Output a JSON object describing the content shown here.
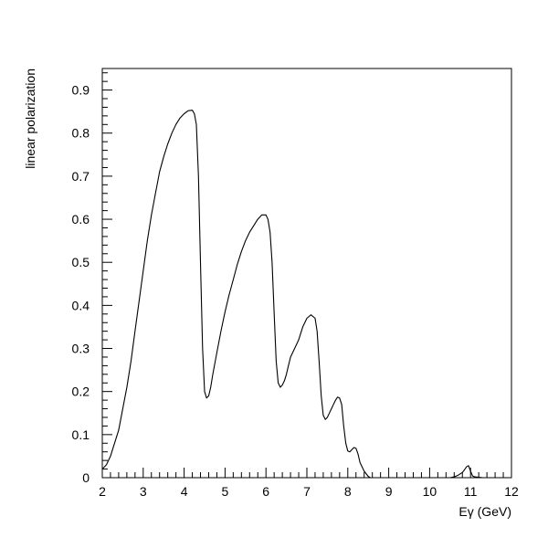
{
  "chart_data": {
    "type": "line",
    "title": "",
    "xlabel": "Eγ (GeV)",
    "ylabel": "linear polarization",
    "xlim": [
      2,
      12
    ],
    "ylim": [
      0,
      0.95
    ],
    "grid": false,
    "x_ticks": [
      2,
      3,
      4,
      5,
      6,
      7,
      8,
      9,
      10,
      11,
      12
    ],
    "y_ticks": [
      0,
      0.1,
      0.2,
      0.3,
      0.4,
      0.5,
      0.6,
      0.7,
      0.8,
      0.9
    ],
    "x_tick_labels": [
      "2",
      "3",
      "4",
      "5",
      "6",
      "7",
      "8",
      "9",
      "10",
      "11",
      "12"
    ],
    "y_tick_labels": [
      "0",
      "0.1",
      "0.2",
      "0.3",
      "0.4",
      "0.5",
      "0.6",
      "0.7",
      "0.8",
      "0.9"
    ],
    "series": [
      {
        "x": [
          2.0,
          2.1,
          2.2,
          2.3,
          2.4,
          2.5,
          2.6,
          2.7,
          2.8,
          2.9,
          3.0,
          3.1,
          3.2,
          3.3,
          3.4,
          3.5,
          3.6,
          3.7,
          3.8,
          3.9,
          4.0,
          4.1,
          4.2,
          4.25,
          4.3,
          4.35,
          4.4,
          4.45,
          4.5,
          4.55,
          4.6,
          4.65,
          4.7,
          4.8,
          4.9,
          5.0,
          5.1,
          5.2,
          5.3,
          5.4,
          5.5,
          5.6,
          5.7,
          5.8,
          5.9,
          6.0,
          6.05,
          6.1,
          6.15,
          6.2,
          6.25,
          6.3,
          6.35,
          6.4,
          6.45,
          6.5,
          6.55,
          6.6,
          6.7,
          6.8,
          6.9,
          7.0,
          7.1,
          7.2,
          7.25,
          7.3,
          7.35,
          7.4,
          7.45,
          7.5,
          7.55,
          7.6,
          7.65,
          7.7,
          7.75,
          7.8,
          7.85,
          7.9,
          7.95,
          8.0,
          8.05,
          8.1,
          8.15,
          8.2,
          8.25,
          8.3,
          8.4,
          8.5,
          8.55,
          8.6,
          8.65,
          8.7,
          8.75,
          8.8
        ],
        "y": [
          0.02,
          0.03,
          0.05,
          0.08,
          0.11,
          0.16,
          0.21,
          0.27,
          0.34,
          0.41,
          0.48,
          0.55,
          0.61,
          0.66,
          0.71,
          0.745,
          0.775,
          0.8,
          0.82,
          0.835,
          0.845,
          0.852,
          0.853,
          0.845,
          0.82,
          0.7,
          0.5,
          0.3,
          0.2,
          0.185,
          0.19,
          0.21,
          0.24,
          0.29,
          0.34,
          0.385,
          0.425,
          0.46,
          0.495,
          0.525,
          0.55,
          0.57,
          0.585,
          0.6,
          0.61,
          0.61,
          0.6,
          0.57,
          0.5,
          0.38,
          0.27,
          0.22,
          0.21,
          0.215,
          0.225,
          0.24,
          0.26,
          0.28,
          0.3,
          0.32,
          0.35,
          0.37,
          0.378,
          0.37,
          0.34,
          0.27,
          0.19,
          0.145,
          0.135,
          0.14,
          0.15,
          0.16,
          0.17,
          0.18,
          0.187,
          0.185,
          0.17,
          0.12,
          0.08,
          0.062,
          0.06,
          0.065,
          0.07,
          0.068,
          0.055,
          0.035,
          0.015,
          0.003,
          0.0,
          0.0,
          0.0,
          0.0,
          0.0,
          0.0
        ]
      },
      {
        "x": [
          10.3,
          10.4,
          10.5,
          10.6,
          10.7,
          10.8,
          10.85,
          10.9,
          10.95,
          11.0,
          11.05,
          11.1,
          11.2,
          11.3,
          11.4,
          11.5
        ],
        "y": [
          0.0,
          0.0,
          0.0,
          0.002,
          0.006,
          0.012,
          0.018,
          0.025,
          0.028,
          0.015,
          0.004,
          0.002,
          0.001,
          0.0,
          0.0,
          0.0
        ]
      }
    ]
  }
}
